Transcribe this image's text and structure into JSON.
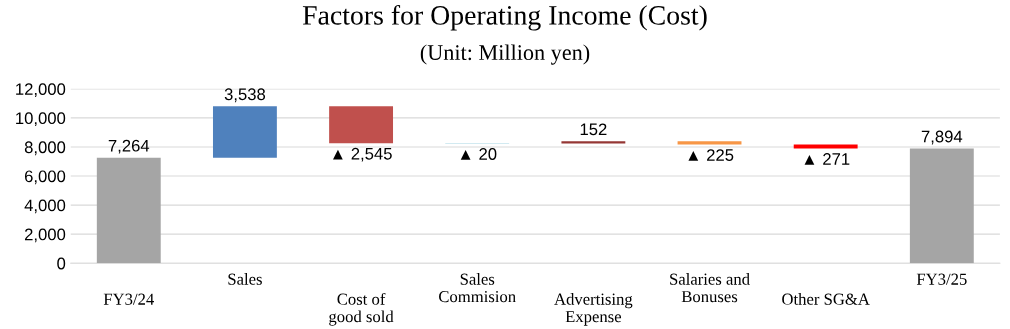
{
  "chart_data": {
    "type": "bar",
    "title": "Factors for Operating Income (Cost)",
    "subtitle": "(Unit: Million yen)",
    "categories": [
      "FY3/24",
      "Sales",
      "Cost of\ngood sold",
      "Sales\nCommision",
      "Advertising\nExpense",
      "Salaries and\nBonuses",
      "Other SG&A",
      "FY3/25"
    ],
    "values": [
      7264,
      3538,
      -2545,
      -20,
      152,
      -225,
      -271,
      7894
    ],
    "base": [
      0,
      7264,
      10802,
      8257,
      8237,
      8389,
      8164,
      0
    ],
    "colors": [
      "#a5a5a5",
      "#4f81bd",
      "#c0504d",
      "#4bacc6",
      "#953735",
      "#f79646",
      "#ff0000",
      "#a5a5a5"
    ],
    "value_labels": [
      "7,264",
      "3,538",
      "▲ 2,545",
      "▲ 20",
      "152",
      "▲ 225",
      "▲ 271",
      "7,894"
    ],
    "ylim": [
      0,
      12000
    ],
    "yticks": [
      {
        "value": 0,
        "label": "0"
      },
      {
        "value": 2000,
        "label": "2,000"
      },
      {
        "value": 4000,
        "label": "4,000"
      },
      {
        "value": 6000,
        "label": "6,000"
      },
      {
        "value": 8000,
        "label": "8,000"
      },
      {
        "value": 10000,
        "label": "10,000"
      },
      {
        "value": 12000,
        "label": "12,000"
      }
    ],
    "grid": "y"
  }
}
